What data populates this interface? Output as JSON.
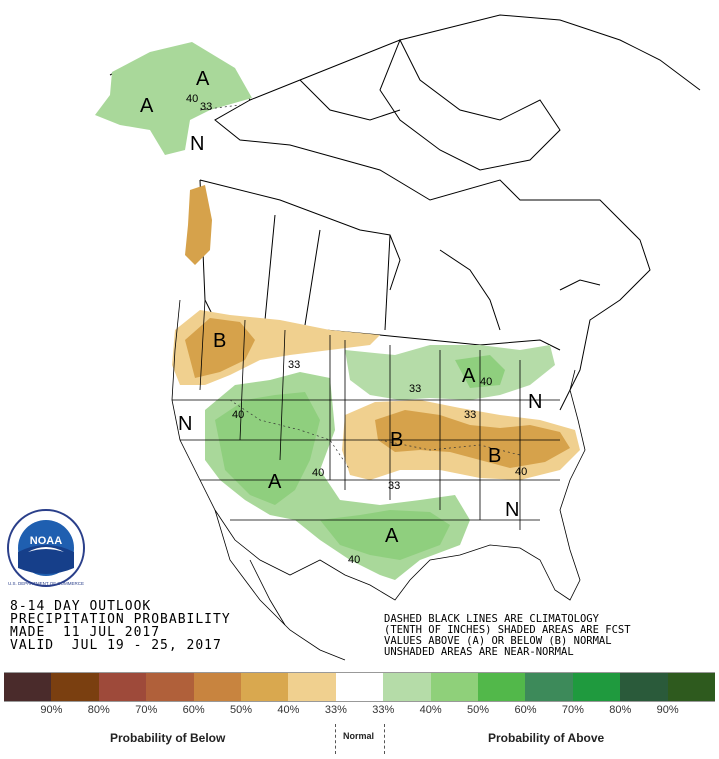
{
  "title": {
    "line1": "8-14 DAY OUTLOOK",
    "line2": "PRECIPITATION PROBABILITY",
    "line3": "MADE  11 JUL 2017",
    "line4": "VALID  JUL 19 - 25, 2017"
  },
  "notes": {
    "line1": "DASHED BLACK LINES ARE CLIMATOLOGY",
    "line2": "(TENTH OF INCHES) SHADED AREAS ARE FCST",
    "line3": "VALUES ABOVE (A) OR BELOW (B) NORMAL",
    "line4": "UNSHADED AREAS ARE NEAR-NORMAL"
  },
  "map_labels": {
    "above": "A",
    "below": "B",
    "normal": "N",
    "c33": "33",
    "c40": "40"
  },
  "legend": {
    "colors": [
      "#4a2b2b",
      "#7a3f10",
      "#9e4a3a",
      "#b0603a",
      "#c8843f",
      "#d9a84f",
      "#f0d08f",
      "#ffffff",
      "#b5dca8",
      "#8fd07a",
      "#52b84a",
      "#3d8a5a",
      "#1f9a3e",
      "#2a5a3a",
      "#2e5a1e"
    ],
    "labels": [
      "90%",
      "80%",
      "70%",
      "60%",
      "50%",
      "40%",
      "33%",
      "33%",
      "40%",
      "50%",
      "60%",
      "70%",
      "80%",
      "90%"
    ],
    "below_caption": "Probability of Below",
    "normal_caption": "Normal",
    "above_caption": "Probability of Above"
  },
  "logo": {
    "text": "NOAA",
    "ring_text": "U.S. DEPARTMENT OF COMMERCE"
  }
}
